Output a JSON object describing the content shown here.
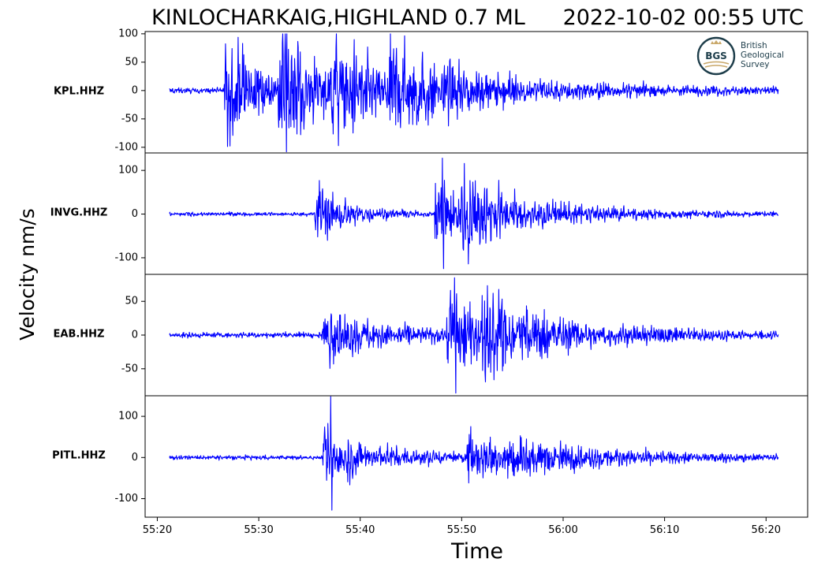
{
  "chart_data": {
    "type": "line",
    "title_left": "KINLOCHARKAIG,HIGHLAND 0.7 ML",
    "title_right": "2022-10-02 00:55 UTC",
    "ylabel": "Velocity nm/s",
    "xlabel": "Time",
    "series_color": "#0000ff",
    "x_ticks": [
      "55:20",
      "55:30",
      "55:40",
      "55:50",
      "56:00",
      "56:10",
      "56:20"
    ],
    "x_tick_seconds": [
      20,
      30,
      40,
      50,
      60,
      70,
      80
    ],
    "xlim_seconds": [
      18.8,
      84.1
    ],
    "trace_start_seconds": 21.2,
    "trace_end_seconds": 81.2,
    "panels": [
      {
        "station": "KPL.HHZ",
        "ylim": [
          -110,
          104
        ],
        "yticks": [
          100,
          50,
          0,
          -50,
          -100
        ],
        "noise": 3.5,
        "arrivals": [
          {
            "t": 26.6,
            "amp": 80,
            "decay": 3.5
          },
          {
            "t": 31.8,
            "amp": 85,
            "decay": 4.0
          },
          {
            "t": 37.0,
            "amp": 55,
            "decay": 6.0
          },
          {
            "t": 42.5,
            "amp": 38,
            "decay": 12.0
          }
        ],
        "peak_max": 100,
        "peak_min": -108
      },
      {
        "station": "INVG.HHZ",
        "ylim": [
          -138,
          140
        ],
        "yticks": [
          100,
          0,
          -100
        ],
        "noise": 3.0,
        "arrivals": [
          {
            "t": 35.5,
            "amp": 60,
            "decay": 3.0
          },
          {
            "t": 47.3,
            "amp": 75,
            "decay": 3.5
          },
          {
            "t": 50.0,
            "amp": 45,
            "decay": 9.0
          }
        ],
        "peak_max": 128,
        "peak_min": -125
      },
      {
        "station": "EAB.HHZ",
        "ylim": [
          -90,
          90
        ],
        "yticks": [
          50,
          0,
          -50
        ],
        "noise": 3.0,
        "arrivals": [
          {
            "t": 36.2,
            "amp": 30,
            "decay": 6.0
          },
          {
            "t": 48.5,
            "amp": 50,
            "decay": 4.0
          },
          {
            "t": 52.0,
            "amp": 30,
            "decay": 10.0
          }
        ],
        "peak_max": 85,
        "peak_min": -86
      },
      {
        "station": "PITL.HHZ",
        "ylim": [
          -145,
          150
        ],
        "yticks": [
          100,
          0,
          -100
        ],
        "noise": 4.0,
        "arrivals": [
          {
            "t": 36.3,
            "amp": 80,
            "decay": 1.6
          },
          {
            "t": 38.5,
            "amp": 25,
            "decay": 8.0
          },
          {
            "t": 50.5,
            "amp": 45,
            "decay": 4.0
          },
          {
            "t": 54.0,
            "amp": 25,
            "decay": 12.0
          }
        ],
        "peak_max": 148,
        "peak_min": -128
      }
    ]
  },
  "logo": {
    "abbr": "BGS",
    "lines": [
      "British",
      "Geological",
      "Survey"
    ],
    "color": "#1d3d4a",
    "accent": "#c9a86a"
  }
}
